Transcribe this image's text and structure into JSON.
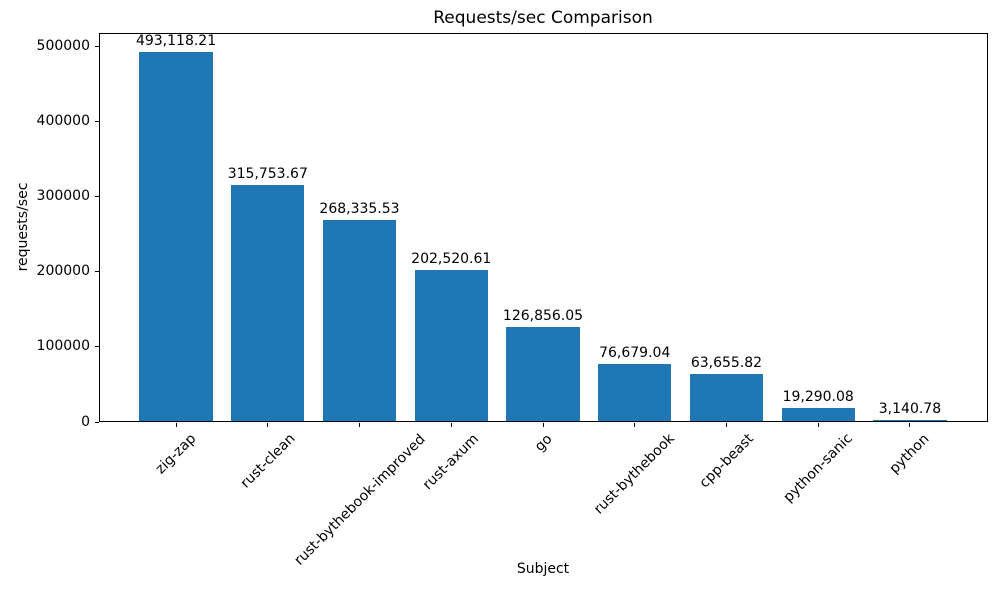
{
  "chart_data": {
    "type": "bar",
    "title": "Requests/sec Comparison",
    "xlabel": "Subject",
    "ylabel": "requests/sec",
    "categories": [
      "zig-zap",
      "rust-clean",
      "rust-bythebook-improved",
      "rust-axum",
      "go",
      "rust-bythebook",
      "cpp-beast",
      "python-sanic",
      "python"
    ],
    "values": [
      493118.21,
      315753.67,
      268335.53,
      202520.61,
      126856.05,
      76679.04,
      63655.82,
      19290.08,
      3140.78
    ],
    "value_labels": [
      "493,118.21",
      "315,753.67",
      "268,335.53",
      "202,520.61",
      "126,856.05",
      "76,679.04",
      "63,655.82",
      "19,290.08",
      "3,140.78"
    ],
    "yticks": [
      0,
      100000,
      200000,
      300000,
      400000,
      500000
    ],
    "ytick_labels": [
      "0",
      "100000",
      "200000",
      "300000",
      "400000",
      "500000"
    ],
    "ylim": [
      0,
      517774
    ],
    "bar_color": "#1f77b4",
    "background_color": "#ffffff",
    "grid": false,
    "legend": "none",
    "bar_width_fraction": 0.8,
    "x_margin_fraction": 0.05,
    "x_tick_rotation_deg": 45
  }
}
